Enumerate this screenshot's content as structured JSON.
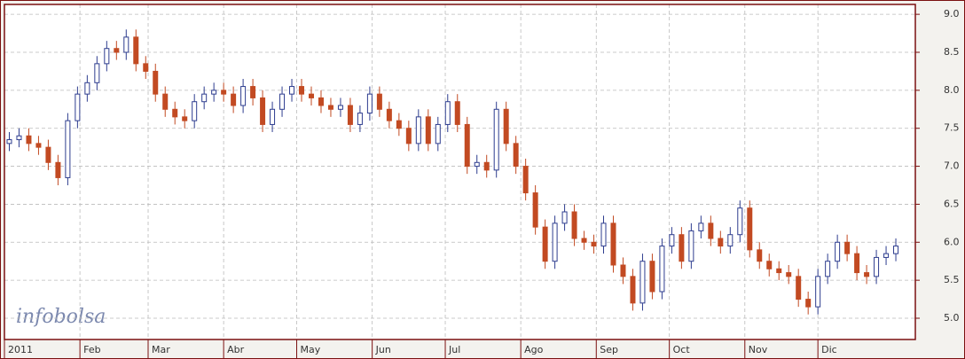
{
  "chart_data": {
    "type": "candlestick",
    "watermark": "infobolsa",
    "up_color": "#2e3d8f",
    "down_color": "#c24a22",
    "grid": true,
    "xlim": [
      0,
      374
    ],
    "ylim": [
      4.72,
      9.13
    ],
    "xticks": [
      {
        "value": 0,
        "label": "2011"
      },
      {
        "value": 31,
        "label": "Feb"
      },
      {
        "value": 59,
        "label": "Mar"
      },
      {
        "value": 90,
        "label": "Abr"
      },
      {
        "value": 120,
        "label": "May"
      },
      {
        "value": 151,
        "label": "Jun"
      },
      {
        "value": 181,
        "label": "Jul"
      },
      {
        "value": 212,
        "label": "Ago"
      },
      {
        "value": 243,
        "label": "Sep"
      },
      {
        "value": 273,
        "label": "Oct"
      },
      {
        "value": 304,
        "label": "Nov"
      },
      {
        "value": 334,
        "label": "Dic"
      }
    ],
    "yticks": [
      {
        "value": 5,
        "label": "5.0"
      },
      5.5,
      {
        "value": 6,
        "label": "6.0"
      },
      6.5,
      {
        "value": 7,
        "label": "7.0"
      },
      7.5,
      {
        "value": 8,
        "label": "8.0"
      },
      8.5,
      {
        "value": 9,
        "label": "9.0"
      }
    ],
    "x": [
      2,
      6,
      10,
      14,
      18,
      22,
      26,
      30,
      34,
      38,
      42,
      46,
      50,
      54,
      58,
      62,
      66,
      70,
      74,
      78,
      82,
      86,
      90,
      94,
      98,
      102,
      106,
      110,
      114,
      118,
      122,
      126,
      130,
      134,
      138,
      142,
      146,
      150,
      154,
      158,
      162,
      166,
      170,
      174,
      178,
      182,
      186,
      190,
      194,
      198,
      202,
      206,
      210,
      214,
      218,
      222,
      226,
      230,
      234,
      238,
      242,
      246,
      250,
      254,
      258,
      262,
      266,
      270,
      274,
      278,
      282,
      286,
      290,
      294,
      298,
      302,
      306,
      310,
      314,
      318,
      322,
      326,
      330,
      334,
      338,
      342,
      346,
      350,
      354,
      358,
      362,
      366
    ],
    "open": [
      7.3,
      7.35,
      7.4,
      7.3,
      7.25,
      7.05,
      6.85,
      7.6,
      7.95,
      8.1,
      8.35,
      8.55,
      8.5,
      8.7,
      8.35,
      8.25,
      7.95,
      7.75,
      7.65,
      7.6,
      7.85,
      7.95,
      8.0,
      7.95,
      7.8,
      8.05,
      7.9,
      7.55,
      7.75,
      7.95,
      8.05,
      7.95,
      7.9,
      7.8,
      7.75,
      7.8,
      7.55,
      7.7,
      7.95,
      7.75,
      7.6,
      7.5,
      7.3,
      7.65,
      7.3,
      7.55,
      7.85,
      7.55,
      7.0,
      7.05,
      6.95,
      7.75,
      7.3,
      7.0,
      6.65,
      6.2,
      5.75,
      6.25,
      6.4,
      6.05,
      6.0,
      5.95,
      6.25,
      5.7,
      5.55,
      5.2,
      5.75,
      5.35,
      5.95,
      6.1,
      5.75,
      6.15,
      6.25,
      6.05,
      5.95,
      6.1,
      6.45,
      5.9,
      5.75,
      5.65,
      5.6,
      5.55,
      5.25,
      5.15,
      5.55,
      5.75,
      6.0,
      5.85,
      5.6,
      5.55,
      5.8,
      5.85
    ],
    "high": [
      7.45,
      7.5,
      7.5,
      7.4,
      7.35,
      7.15,
      7.7,
      8.05,
      8.2,
      8.45,
      8.65,
      8.65,
      8.8,
      8.8,
      8.45,
      8.35,
      8.05,
      7.85,
      7.75,
      7.95,
      8.05,
      8.1,
      8.1,
      8.05,
      8.15,
      8.15,
      8.0,
      7.85,
      8.05,
      8.15,
      8.15,
      8.05,
      8.0,
      7.9,
      7.9,
      7.9,
      7.8,
      8.05,
      8.05,
      7.85,
      7.7,
      7.6,
      7.75,
      7.75,
      7.65,
      7.95,
      7.95,
      7.65,
      7.15,
      7.15,
      7.85,
      7.85,
      7.4,
      7.1,
      6.75,
      6.3,
      6.35,
      6.5,
      6.5,
      6.15,
      6.1,
      6.35,
      6.35,
      5.8,
      5.65,
      5.85,
      5.85,
      6.05,
      6.2,
      6.2,
      6.25,
      6.35,
      6.35,
      6.15,
      6.2,
      6.55,
      6.55,
      6.0,
      5.85,
      5.75,
      5.7,
      5.65,
      5.35,
      5.65,
      5.85,
      6.1,
      6.1,
      5.95,
      5.7,
      5.9,
      5.95,
      6.05
    ],
    "low": [
      7.2,
      7.25,
      7.2,
      7.15,
      6.95,
      6.75,
      6.75,
      7.5,
      7.85,
      8.0,
      8.25,
      8.4,
      8.4,
      8.25,
      8.15,
      7.85,
      7.65,
      7.55,
      7.5,
      7.5,
      7.75,
      7.85,
      7.85,
      7.7,
      7.7,
      7.8,
      7.45,
      7.45,
      7.65,
      7.85,
      7.85,
      7.8,
      7.7,
      7.65,
      7.65,
      7.45,
      7.45,
      7.6,
      7.65,
      7.5,
      7.4,
      7.2,
      7.2,
      7.2,
      7.2,
      7.45,
      7.45,
      6.9,
      6.9,
      6.85,
      6.85,
      7.2,
      6.9,
      6.55,
      6.1,
      5.65,
      5.65,
      6.15,
      5.95,
      5.9,
      5.85,
      5.85,
      5.6,
      5.45,
      5.1,
      5.1,
      5.25,
      5.25,
      5.85,
      5.65,
      5.65,
      6.05,
      5.95,
      5.85,
      5.85,
      6.0,
      5.8,
      5.65,
      5.55,
      5.5,
      5.45,
      5.15,
      5.05,
      5.05,
      5.45,
      5.65,
      5.75,
      5.5,
      5.45,
      5.45,
      5.7,
      5.75
    ],
    "close": [
      7.35,
      7.4,
      7.3,
      7.25,
      7.05,
      6.85,
      7.6,
      7.95,
      8.1,
      8.35,
      8.55,
      8.5,
      8.7,
      8.35,
      8.25,
      7.95,
      7.75,
      7.65,
      7.6,
      7.85,
      7.95,
      8.0,
      7.95,
      7.8,
      8.05,
      7.9,
      7.55,
      7.75,
      7.95,
      8.05,
      7.95,
      7.9,
      7.8,
      7.75,
      7.8,
      7.55,
      7.7,
      7.95,
      7.75,
      7.6,
      7.5,
      7.3,
      7.65,
      7.3,
      7.55,
      7.85,
      7.55,
      7.0,
      7.05,
      6.95,
      7.75,
      7.3,
      7.0,
      6.65,
      6.2,
      5.75,
      6.25,
      6.4,
      6.05,
      6.0,
      5.95,
      6.25,
      5.7,
      5.55,
      5.2,
      5.75,
      5.35,
      5.95,
      6.1,
      5.75,
      6.15,
      6.25,
      6.05,
      5.95,
      6.1,
      6.45,
      5.9,
      5.75,
      5.65,
      5.6,
      5.55,
      5.25,
      5.15,
      5.55,
      5.75,
      6.0,
      5.85,
      5.6,
      5.55,
      5.8,
      5.85,
      5.95
    ]
  }
}
